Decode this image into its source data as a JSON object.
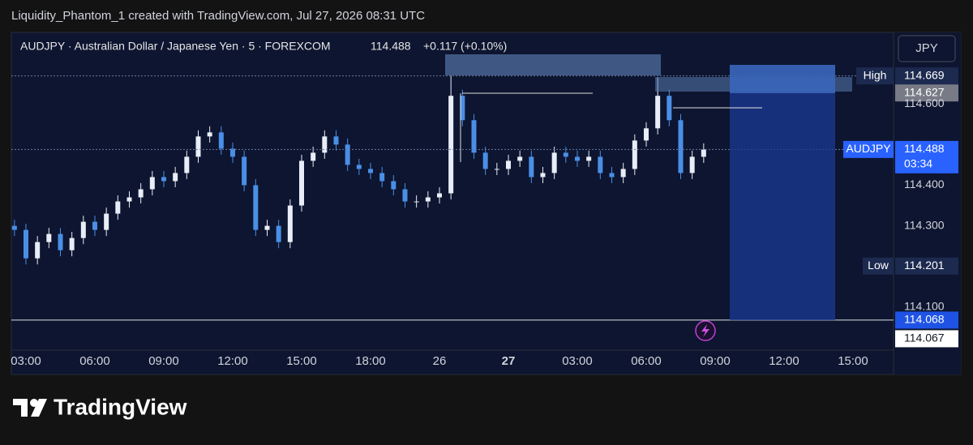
{
  "header": "Liquidity_Phantom_1 created with TradingView.com, Jul 27, 2026 08:31 UTC",
  "brand": "TradingView",
  "chart_data": {
    "type": "candlestick",
    "legend": {
      "symbol": "AUDJPY · Australian Dollar / Japanese Yen · 5 · FOREXCOM",
      "last": 114.488,
      "change": "+0.117 (+0.10%)"
    },
    "currency": "JPY",
    "up_color": "#e8edf7",
    "down_color": "#4a8fe6",
    "x": [
      -0.5,
      0,
      0.5,
      1,
      1.5,
      2,
      2.5,
      3,
      3.5,
      4,
      4.5,
      5,
      5.5,
      6,
      6.5,
      7,
      7.5,
      8,
      8.5,
      9,
      9.5,
      10,
      10.5,
      11,
      11.5,
      12,
      12.5,
      13,
      13.5,
      14,
      14.5,
      15,
      15.5,
      16,
      16.5,
      17,
      17.5,
      18,
      18.5,
      19,
      19.5,
      20,
      20.5,
      21,
      21.5,
      22,
      22.5,
      23,
      23.5,
      24,
      24.5,
      25,
      25.5,
      26,
      26.5,
      27,
      27.5,
      28,
      28.5,
      29,
      29.5
    ],
    "open": [
      114.3,
      114.29,
      114.22,
      114.26,
      114.28,
      114.24,
      114.27,
      114.31,
      114.29,
      114.33,
      114.36,
      114.37,
      114.39,
      114.42,
      114.41,
      114.43,
      114.47,
      114.52,
      114.53,
      114.49,
      114.47,
      114.4,
      114.29,
      114.3,
      114.26,
      114.35,
      114.46,
      114.48,
      114.52,
      114.5,
      114.45,
      114.44,
      114.43,
      114.41,
      114.39,
      114.36,
      114.36,
      114.37,
      114.38,
      114.62,
      114.56,
      114.48,
      114.44,
      114.44,
      114.46,
      114.47,
      114.42,
      114.43,
      114.48,
      114.47,
      114.46,
      114.47,
      114.43,
      114.42,
      114.44,
      114.51,
      114.54,
      114.62,
      114.56,
      114.43,
      114.47
    ],
    "high": [
      114.315,
      114.305,
      114.275,
      114.295,
      114.295,
      114.285,
      114.325,
      114.325,
      114.345,
      114.375,
      114.385,
      114.405,
      114.435,
      114.435,
      114.445,
      114.485,
      114.535,
      114.545,
      114.545,
      114.505,
      114.485,
      114.415,
      114.315,
      114.315,
      114.365,
      114.475,
      114.495,
      114.535,
      114.535,
      114.515,
      114.465,
      114.455,
      114.445,
      114.425,
      114.405,
      114.375,
      114.385,
      114.395,
      114.67,
      114.635,
      114.575,
      114.495,
      114.455,
      114.475,
      114.485,
      114.485,
      114.445,
      114.495,
      114.495,
      114.485,
      114.485,
      114.485,
      114.445,
      114.455,
      114.525,
      114.555,
      114.665,
      114.635,
      114.575,
      114.485,
      114.503
    ],
    "low": [
      114.275,
      114.205,
      114.205,
      114.245,
      114.225,
      114.225,
      114.255,
      114.275,
      114.275,
      114.315,
      114.345,
      114.355,
      114.375,
      114.395,
      114.395,
      114.415,
      114.455,
      114.505,
      114.475,
      114.455,
      114.385,
      114.275,
      114.275,
      114.245,
      114.245,
      114.335,
      114.445,
      114.465,
      114.485,
      114.435,
      114.425,
      114.415,
      114.395,
      114.375,
      114.345,
      114.345,
      114.345,
      114.355,
      114.365,
      114.545,
      114.465,
      114.425,
      114.425,
      114.425,
      114.445,
      114.405,
      114.405,
      114.415,
      114.455,
      114.445,
      114.445,
      114.415,
      114.405,
      114.405,
      114.425,
      114.495,
      114.525,
      114.545,
      114.415,
      114.415,
      114.455
    ],
    "close": [
      114.29,
      114.22,
      114.26,
      114.28,
      114.24,
      114.27,
      114.31,
      114.29,
      114.33,
      114.36,
      114.37,
      114.39,
      114.42,
      114.41,
      114.43,
      114.47,
      114.52,
      114.53,
      114.49,
      114.47,
      114.4,
      114.29,
      114.3,
      114.26,
      114.35,
      114.46,
      114.48,
      114.52,
      114.5,
      114.45,
      114.44,
      114.43,
      114.41,
      114.39,
      114.36,
      114.36,
      114.37,
      114.38,
      114.62,
      114.56,
      114.48,
      114.44,
      114.44,
      114.46,
      114.47,
      114.42,
      114.43,
      114.48,
      114.47,
      114.46,
      114.47,
      114.43,
      114.42,
      114.44,
      114.51,
      114.54,
      114.62,
      114.56,
      114.43,
      114.47,
      114.488
    ],
    "xlim": [
      -0.635,
      37.765
    ],
    "xticks": [
      {
        "value": 0,
        "label": "03:00"
      },
      {
        "value": 3,
        "label": "06:00"
      },
      {
        "value": 6,
        "label": "09:00"
      },
      {
        "value": 9,
        "label": "12:00"
      },
      {
        "value": 12,
        "label": "15:00"
      },
      {
        "value": 15,
        "label": "18:00"
      },
      {
        "value": 18,
        "label": "26"
      },
      {
        "value": 21,
        "label": "27",
        "bold": true
      },
      {
        "value": 24,
        "label": "03:00"
      },
      {
        "value": 27,
        "label": "06:00"
      },
      {
        "value": 30,
        "label": "09:00"
      },
      {
        "value": 33,
        "label": "12:00"
      },
      {
        "value": 36,
        "label": "15:00"
      }
    ],
    "ylim": [
      113.994,
      114.776
    ],
    "yticks": [
      {
        "value": 114.1,
        "label": "114.100"
      },
      {
        "value": 114.3,
        "label": "114.300"
      },
      {
        "value": 114.4,
        "label": "114.400"
      },
      {
        "value": 114.6,
        "label": "114.600"
      }
    ],
    "price_labels": [
      {
        "label": "High",
        "value": 114.669,
        "color": "#1c2a4f",
        "line": "dotted"
      },
      {
        "value": 114.627,
        "color": "#787b86"
      },
      {
        "label": "AUDJPY",
        "value": 114.488,
        "sub": "03:34",
        "color": "#2962ff",
        "line": "dotted"
      },
      {
        "label": "Low",
        "value": 114.201,
        "color": "#1c2a4f"
      },
      {
        "value": 114.068,
        "color": "#1e53e5",
        "line": "solid"
      },
      {
        "value": 114.067,
        "color": "#ffffff"
      }
    ]
  }
}
